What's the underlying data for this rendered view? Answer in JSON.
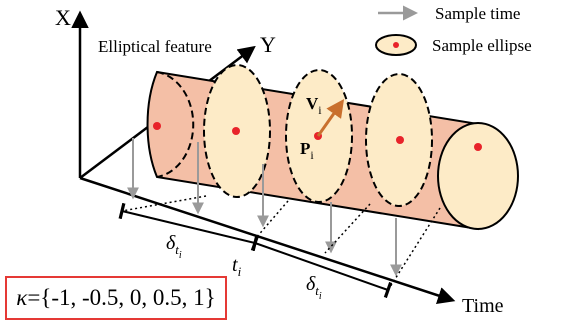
{
  "axes": {
    "x_label": "X",
    "y_label": "Y",
    "time_label": "Time"
  },
  "legend": {
    "sample_time_label": "Sample time",
    "sample_ellipse_label": "Sample ellipse"
  },
  "feature_label": "Elliptical feature",
  "point_labels": {
    "position": "P",
    "position_sub": "i",
    "velocity": "V",
    "velocity_sub": "i"
  },
  "intervals": {
    "delta_symbol": "δ",
    "t_symbol": "t",
    "sub_i": "i"
  },
  "kappa": {
    "symbol": "κ",
    "values": "={-1, -0.5, 0, 0.5, 1}"
  },
  "colors": {
    "cylinder_fill": "#f4bfa6",
    "ellipse_fill": "#fdebc7",
    "point_red": "#e8232a",
    "velocity_arrow": "#c9702e",
    "sample_arrow": "#9a9a9a",
    "kappa_border": "#e53935"
  }
}
